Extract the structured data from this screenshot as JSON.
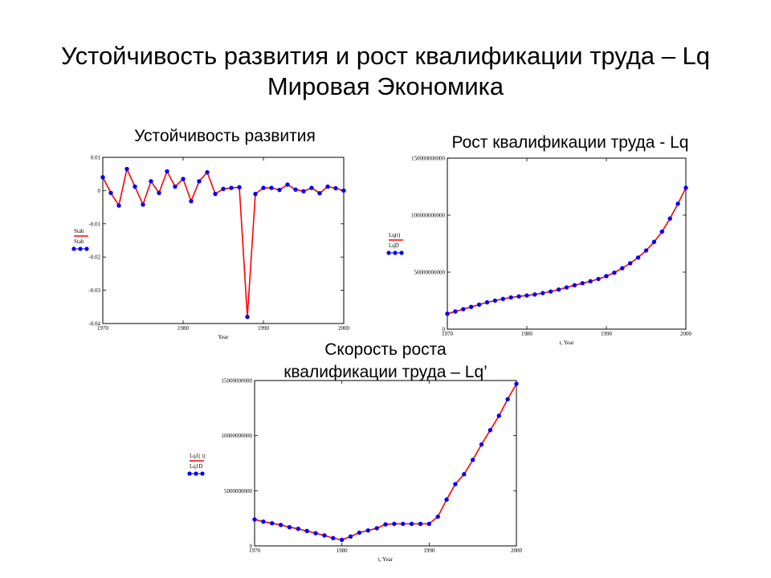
{
  "slide": {
    "title_line1": "Устойчивость развития и рост квалификации труда – Lq",
    "title_line2": "Мировая Экономика"
  },
  "chart_data": [
    {
      "type": "line",
      "title": "Устойчивость развития",
      "xlabel": "Year",
      "xlim": [
        1970,
        2000
      ],
      "ylim": [
        -0.04,
        0.01
      ],
      "x_ticks": [
        "1970",
        "1980",
        "1990",
        "2000"
      ],
      "y_ticks": [
        "0.01",
        "0",
        "-0.01",
        "-0.02",
        "-0.03",
        "-0.04"
      ],
      "legend": [
        "Stab",
        "Stab"
      ],
      "series": [
        {
          "name": "Stab",
          "style": "line",
          "color": "#ff0000",
          "x": [
            1970,
            1971,
            1972,
            1973,
            1974,
            1975,
            1976,
            1977,
            1978,
            1979,
            1980,
            1981,
            1982,
            1983,
            1984,
            1985,
            1986,
            1987,
            1988,
            1989,
            1990,
            1991,
            1992,
            1993,
            1994,
            1995,
            1996,
            1997,
            1998,
            1999,
            2000
          ],
          "values": [
            0.004,
            -0.0007,
            -0.0045,
            0.0065,
            0.0012,
            -0.0042,
            0.0028,
            -0.0007,
            0.0058,
            0.0012,
            0.0035,
            -0.0032,
            0.0028,
            0.0055,
            -0.001,
            0.0005,
            0.0008,
            0.001,
            -0.038,
            -0.001,
            0.0008,
            0.0008,
            0.0002,
            0.0018,
            0.0003,
            -0.0002,
            0.0008,
            -0.0008,
            0.0012,
            0.0007,
            0
          ]
        },
        {
          "name": "Stab",
          "style": "dots",
          "color": "#0000ff",
          "x": [
            1970,
            1971,
            1972,
            1973,
            1974,
            1975,
            1976,
            1977,
            1978,
            1979,
            1980,
            1981,
            1982,
            1983,
            1984,
            1985,
            1986,
            1987,
            1988,
            1989,
            1990,
            1991,
            1992,
            1993,
            1994,
            1995,
            1996,
            1997,
            1998,
            1999,
            2000
          ],
          "values": [
            0.004,
            -0.0007,
            -0.0045,
            0.0065,
            0.0012,
            -0.0042,
            0.0028,
            -0.0007,
            0.0058,
            0.0012,
            0.0035,
            -0.0032,
            0.0028,
            0.0055,
            -0.001,
            0.0005,
            0.0008,
            0.001,
            -0.038,
            -0.001,
            0.0008,
            0.0008,
            0.0002,
            0.0018,
            0.0003,
            -0.0002,
            0.0008,
            -0.0008,
            0.0012,
            0.0007,
            0
          ]
        }
      ]
    },
    {
      "type": "line",
      "title": "Рост квалификации труда - Lq",
      "xlabel": "t, Year",
      "xlim": [
        1970,
        2000
      ],
      "ylim": [
        0,
        150000000000
      ],
      "x_ticks": [
        "1970",
        "1980",
        "1990",
        "2000"
      ],
      "y_ticks": [
        "150000000000",
        "100000000000",
        "50000000000",
        "0"
      ],
      "legend": [
        "Lq(t)",
        "LqD"
      ],
      "series": [
        {
          "name": "Lq(t)",
          "style": "line",
          "color": "#ff0000",
          "x": [
            1970,
            1971,
            1972,
            1973,
            1974,
            1975,
            1976,
            1977,
            1978,
            1979,
            1980,
            1981,
            1982,
            1983,
            1984,
            1985,
            1986,
            1987,
            1988,
            1989,
            1990,
            1991,
            1992,
            1993,
            1994,
            1995,
            1996,
            1997,
            1998,
            1999,
            2000
          ],
          "values": [
            13500000000,
            15500000000,
            17500000000,
            19500000000,
            21500000000,
            23500000000,
            25000000000,
            26500000000,
            27800000000,
            28700000000,
            29500000000,
            30400000000,
            31600000000,
            33000000000,
            34700000000,
            36600000000,
            38500000000,
            40300000000,
            42000000000,
            44000000000,
            46500000000,
            49500000000,
            53500000000,
            57800000000,
            62800000000,
            69000000000,
            76500000000,
            85500000000,
            97000000000,
            110000000000,
            124000000000
          ]
        },
        {
          "name": "LqD",
          "style": "dots",
          "color": "#0000ff",
          "x": [
            1970,
            1971,
            1972,
            1973,
            1974,
            1975,
            1976,
            1977,
            1978,
            1979,
            1980,
            1981,
            1982,
            1983,
            1984,
            1985,
            1986,
            1987,
            1988,
            1989,
            1990,
            1991,
            1992,
            1993,
            1994,
            1995,
            1996,
            1997,
            1998,
            1999,
            2000
          ],
          "values": [
            13500000000,
            15500000000,
            17500000000,
            19500000000,
            21500000000,
            23500000000,
            25000000000,
            26500000000,
            27800000000,
            28700000000,
            29500000000,
            30400000000,
            31600000000,
            33000000000,
            34700000000,
            36600000000,
            38500000000,
            40300000000,
            42000000000,
            44000000000,
            46500000000,
            49500000000,
            53500000000,
            57800000000,
            62800000000,
            69000000000,
            76500000000,
            85500000000,
            97000000000,
            110000000000,
            124000000000
          ]
        }
      ]
    },
    {
      "type": "line",
      "title": "Скорость роста квалификации труда – Lq’",
      "title_line1": "Скорость роста",
      "title_line2": "квалификации труда – Lq’",
      "xlabel": "t, Year",
      "xlim": [
        1970,
        2000
      ],
      "ylim": [
        0,
        15000000000
      ],
      "x_ticks": [
        "1970",
        "1980",
        "1990",
        "2000"
      ],
      "y_ticks": [
        "15000000000",
        "10000000000",
        "5000000000",
        "0"
      ],
      "legend": [
        "Lq1( t)",
        "Lq1D"
      ],
      "series": [
        {
          "name": "Lq1( t)",
          "style": "line",
          "color": "#ff0000",
          "x": [
            1970,
            1971,
            1972,
            1973,
            1974,
            1975,
            1976,
            1977,
            1978,
            1979,
            1980,
            1981,
            1982,
            1983,
            1984,
            1985,
            1986,
            1987,
            1988,
            1989,
            1990,
            1991,
            1992,
            1993,
            1994,
            1995,
            1996,
            1997,
            1998,
            1999,
            2000
          ],
          "values": [
            2400000000,
            2200000000,
            2050000000,
            1900000000,
            1700000000,
            1550000000,
            1350000000,
            1150000000,
            950000000,
            700000000,
            550000000,
            850000000,
            1200000000,
            1400000000,
            1600000000,
            1950000000,
            2000000000,
            2000000000,
            2000000000,
            2000000000,
            2000000000,
            2650000000,
            4200000000,
            5600000000,
            6500000000,
            7800000000,
            9200000000,
            10500000000,
            11800000000,
            13300000000,
            14700000000
          ]
        },
        {
          "name": "Lq1D",
          "style": "dots",
          "color": "#0000ff",
          "x": [
            1970,
            1971,
            1972,
            1973,
            1974,
            1975,
            1976,
            1977,
            1978,
            1979,
            1980,
            1981,
            1982,
            1983,
            1984,
            1985,
            1986,
            1987,
            1988,
            1989,
            1990,
            1991,
            1992,
            1993,
            1994,
            1995,
            1996,
            1997,
            1998,
            1999,
            2000
          ],
          "values": [
            2400000000,
            2200000000,
            2050000000,
            1900000000,
            1700000000,
            1550000000,
            1350000000,
            1150000000,
            950000000,
            700000000,
            550000000,
            850000000,
            1200000000,
            1400000000,
            1600000000,
            1950000000,
            2000000000,
            2000000000,
            2000000000,
            2000000000,
            2000000000,
            2650000000,
            4200000000,
            5600000000,
            6500000000,
            7800000000,
            9200000000,
            10500000000,
            11800000000,
            13300000000,
            14700000000
          ]
        }
      ]
    }
  ]
}
